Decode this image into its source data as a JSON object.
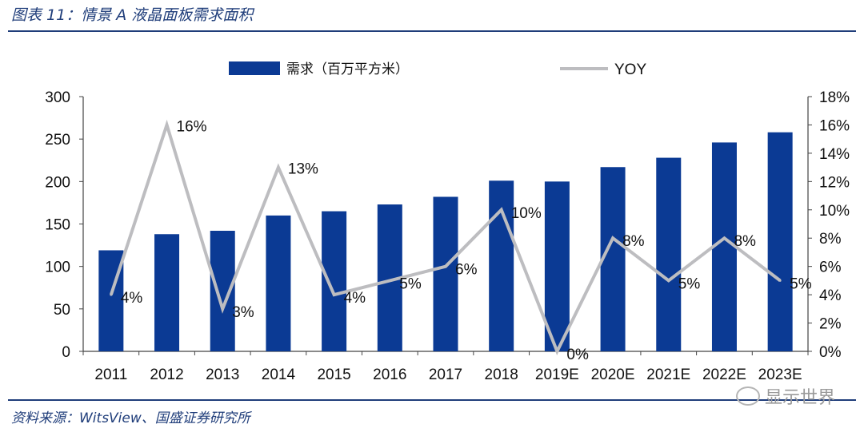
{
  "figure": {
    "title": "图表 11：情景 A 液晶面板需求面积",
    "source": "资料来源：WitsView、国盛证券研究所",
    "watermark": "显示世界"
  },
  "chart_data": {
    "type": "bar",
    "title": "",
    "categories": [
      "2011",
      "2012",
      "2013",
      "2014",
      "2015",
      "2016",
      "2017",
      "2018",
      "2019E",
      "2020E",
      "2021E",
      "2022E",
      "2023E"
    ],
    "series": [
      {
        "name": "需求（百万平方米）",
        "type": "bar",
        "axis": "left",
        "color": "#0b3a94",
        "values": [
          119,
          138,
          142,
          160,
          165,
          173,
          182,
          201,
          200,
          217,
          228,
          246,
          258
        ]
      },
      {
        "name": "YOY",
        "type": "line",
        "axis": "right",
        "color": "#bdbdc0",
        "values": [
          4,
          16,
          3,
          13,
          4,
          5,
          6,
          10,
          0,
          8,
          5,
          8,
          5
        ],
        "labels": [
          "4%",
          "16%",
          "3%",
          "13%",
          "4%",
          "5%",
          "6%",
          "10%",
          "0%",
          "8%",
          "5%",
          "8%",
          "5%"
        ]
      }
    ],
    "y_left": {
      "min": 0,
      "max": 300,
      "ticks": [
        "0",
        "50",
        "100",
        "150",
        "200",
        "250",
        "300"
      ]
    },
    "y_right": {
      "min": 0,
      "max": 18,
      "ticks": [
        "0%",
        "2%",
        "4%",
        "6%",
        "8%",
        "10%",
        "12%",
        "14%",
        "16%",
        "18%"
      ]
    },
    "grid": false,
    "legend": "top-center"
  }
}
